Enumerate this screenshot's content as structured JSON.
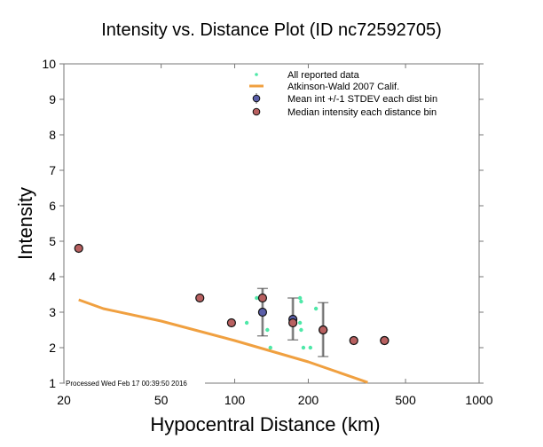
{
  "chart_data": {
    "type": "scatter",
    "title": "Intensity vs. Distance Plot (ID nc72592705)",
    "xlabel": "Hypocentral Distance (km)",
    "ylabel": "Intensity",
    "xscale": "log",
    "xlim": [
      20,
      1000
    ],
    "ylim": [
      1,
      10
    ],
    "xticks": [
      20,
      50,
      100,
      200,
      500,
      1000
    ],
    "xtick_labels": [
      "20",
      "50",
      "100",
      "200",
      "500",
      "1000"
    ],
    "yticks": [
      1,
      2,
      3,
      4,
      5,
      6,
      7,
      8,
      9,
      10
    ],
    "ytick_labels": [
      "1",
      "2",
      "3",
      "4",
      "5",
      "6",
      "7",
      "8",
      "9",
      "10"
    ],
    "grid": false,
    "legend_position": "top-right",
    "legend": [
      {
        "label": "All reported data",
        "marker": "small-dot",
        "color": "#4ee8a8"
      },
      {
        "label": "Atkinson-Wald 2007 Calif.",
        "marker": "line",
        "color": "#f0a040"
      },
      {
        "label": "Mean int +/-1 STDEV each dist bin",
        "marker": "circle-errorbar",
        "color": "#5a5ea8"
      },
      {
        "label": "Median intensity each distance bin",
        "marker": "circle",
        "color": "#b86060"
      }
    ],
    "annotation": "Processed Wed Feb 17 00:39:50 2016",
    "series": [
      {
        "name": "All reported data",
        "color": "#4ee8a8",
        "points": [
          [
            112,
            2.7
          ],
          [
            123,
            3.4
          ],
          [
            136,
            2.5
          ],
          [
            140,
            2.0
          ],
          [
            185,
            3.4
          ],
          [
            187,
            3.3
          ],
          [
            185,
            2.7
          ],
          [
            187,
            2.5
          ],
          [
            191,
            2.0
          ],
          [
            204,
            2.0
          ],
          [
            215,
            3.1
          ],
          [
            412,
            2.2
          ]
        ]
      },
      {
        "name": "Atkinson-Wald 2007 Calif.",
        "color": "#f0a040",
        "points": [
          [
            23,
            3.35
          ],
          [
            29,
            3.1
          ],
          [
            50,
            2.75
          ],
          [
            100,
            2.2
          ],
          [
            200,
            1.6
          ],
          [
            350,
            1.02
          ]
        ]
      },
      {
        "name": "Mean int +/-1 STDEV each dist bin",
        "color": "#5a5ea8",
        "points": [
          {
            "x": 130,
            "y": 3.0,
            "lo": 2.33,
            "hi": 3.67
          },
          {
            "x": 173,
            "y": 2.8,
            "lo": 2.22,
            "hi": 3.4
          },
          {
            "x": 230,
            "y": 2.5,
            "lo": 1.75,
            "hi": 3.27
          },
          {
            "x": 410,
            "y": 2.2,
            "lo": 2.2,
            "hi": 2.2
          }
        ]
      },
      {
        "name": "Median intensity each distance bin",
        "color": "#b86060",
        "points": [
          [
            23,
            4.8
          ],
          [
            72,
            3.4
          ],
          [
            97,
            2.7
          ],
          [
            130,
            3.4
          ],
          [
            173,
            2.7
          ],
          [
            230,
            2.5
          ],
          [
            307,
            2.2
          ],
          [
            410,
            2.2
          ]
        ]
      }
    ]
  }
}
